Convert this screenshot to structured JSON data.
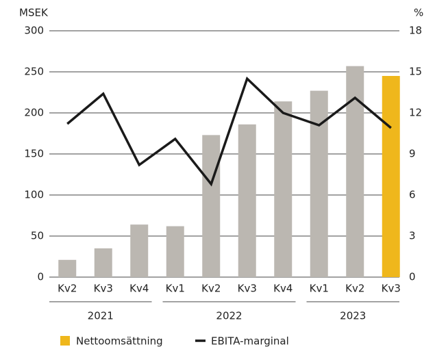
{
  "chart_data": {
    "type": "bar_line",
    "ylabel": "MSEK",
    "y2label": "%",
    "categories": [
      "Kv2",
      "Kv3",
      "Kv4",
      "Kv1",
      "Kv2",
      "Kv3",
      "Kv4",
      "Kv1",
      "Kv2",
      "Kv3"
    ],
    "groups": [
      {
        "name": "2021",
        "size": 3
      },
      {
        "name": "2022",
        "size": 4
      },
      {
        "name": "2023",
        "size": 3
      }
    ],
    "series": [
      {
        "name": "Nettoomsättning",
        "type": "bar",
        "color": "#efb71c",
        "colors": [
          "#bbb7b1",
          "#bbb7b1",
          "#bbb7b1",
          "#bbb7b1",
          "#bbb7b1",
          "#bbb7b1",
          "#bbb7b1",
          "#bbb7b1",
          "#bbb7b1",
          "#efb71c"
        ],
        "values": [
          21,
          35,
          64,
          62,
          173,
          186,
          214,
          227,
          257,
          245
        ]
      },
      {
        "name": "EBITA-marginal",
        "type": "line",
        "axis": "y2",
        "color": "#1a1a1a",
        "values": [
          11.2,
          13.4,
          8.2,
          10.1,
          6.8,
          14.5,
          12.0,
          11.1,
          13.1,
          10.9
        ]
      }
    ],
    "ylim": [
      0,
      300
    ],
    "yticks": [
      0,
      50,
      100,
      150,
      200,
      250,
      300
    ],
    "y2lim": [
      0,
      18
    ],
    "y2ticks": [
      0,
      3,
      6,
      9,
      12,
      15,
      18
    ],
    "grid": true
  }
}
